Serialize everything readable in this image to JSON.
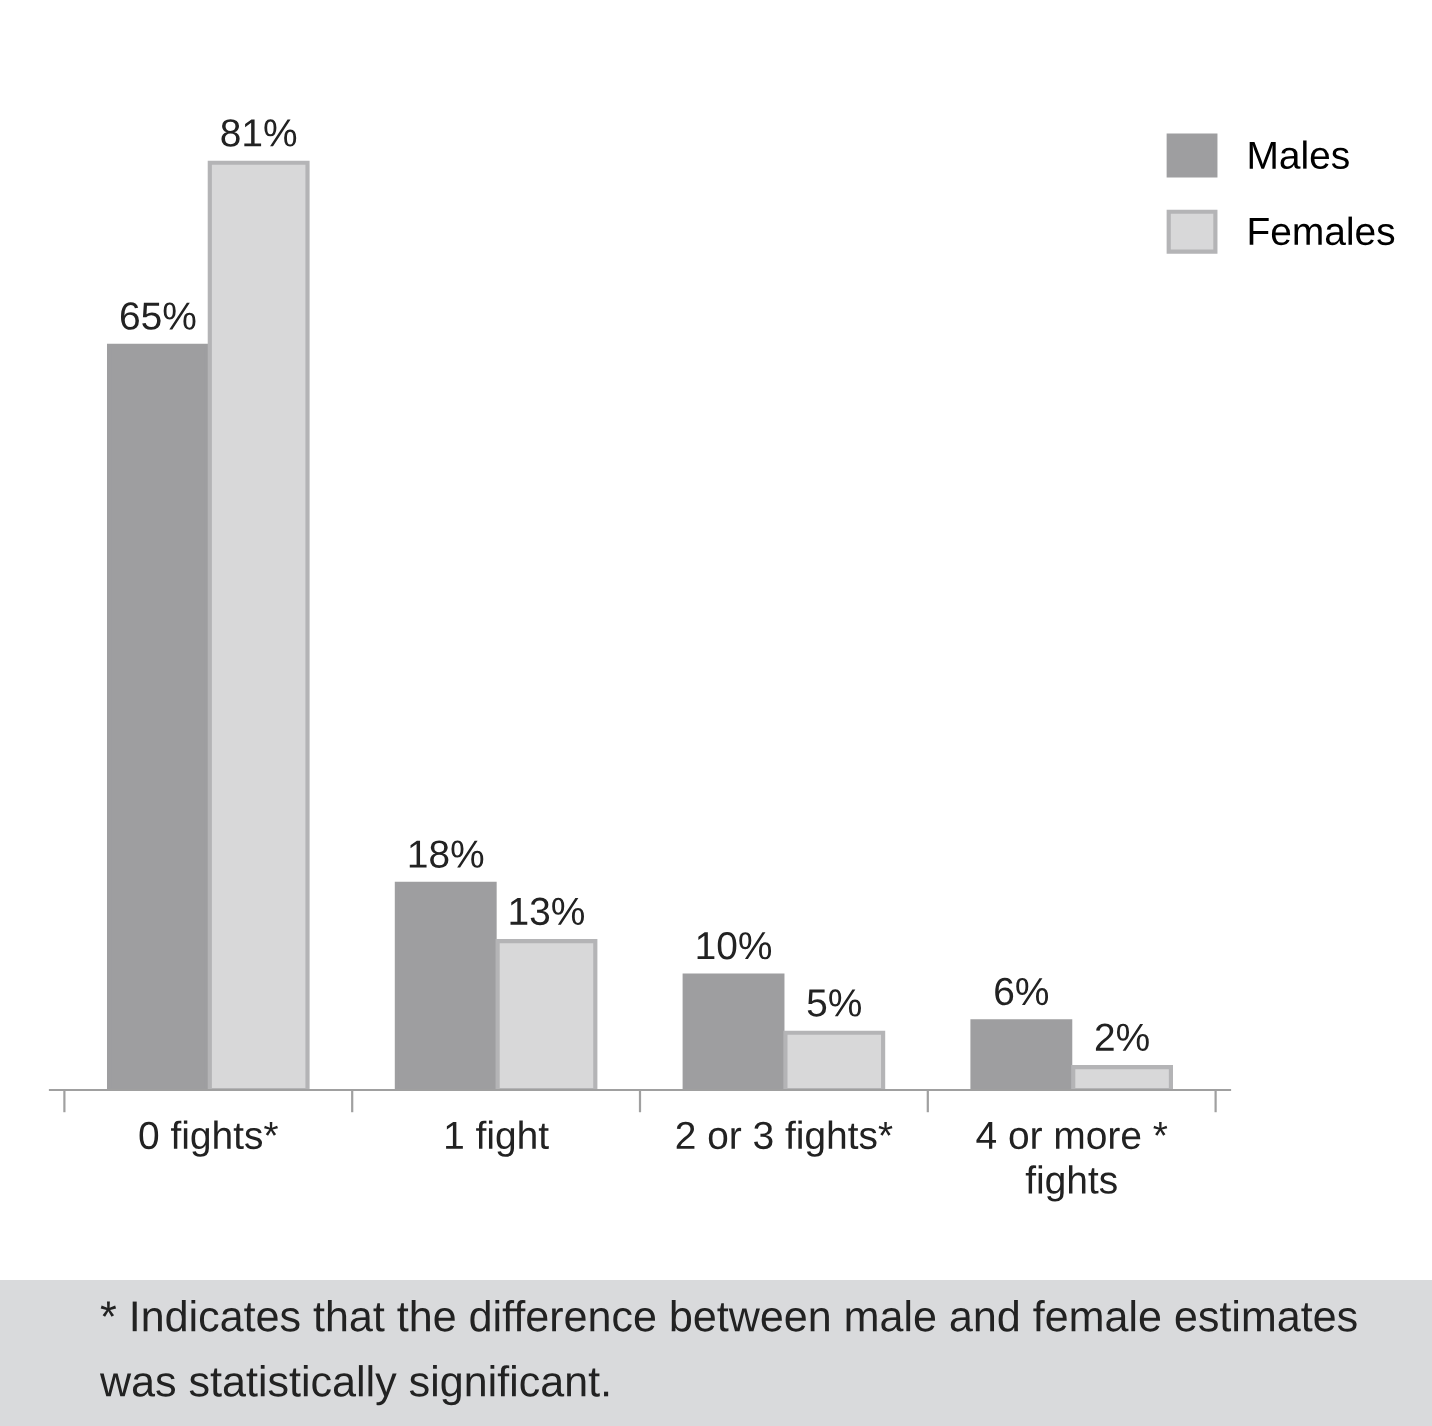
{
  "chart_data": {
    "type": "bar",
    "categories": [
      "0 fights*",
      "1 fight",
      "2 or 3 fights*",
      "4 or more *\nfights"
    ],
    "series": [
      {
        "name": "Males",
        "color": "#9e9ea0",
        "values": [
          65,
          18,
          10,
          6
        ],
        "value_labels": [
          "65%",
          "18%",
          "10%",
          "6%"
        ]
      },
      {
        "name": "Females",
        "color": "#d8d8d9",
        "values": [
          81,
          13,
          5,
          2
        ],
        "value_labels": [
          "81%",
          "13%",
          "5%",
          "2%"
        ]
      }
    ],
    "legend": "top right",
    "grid": false,
    "annotations": [
      "* Indicates that the difference between male and female estimates was statistically significant."
    ]
  }
}
